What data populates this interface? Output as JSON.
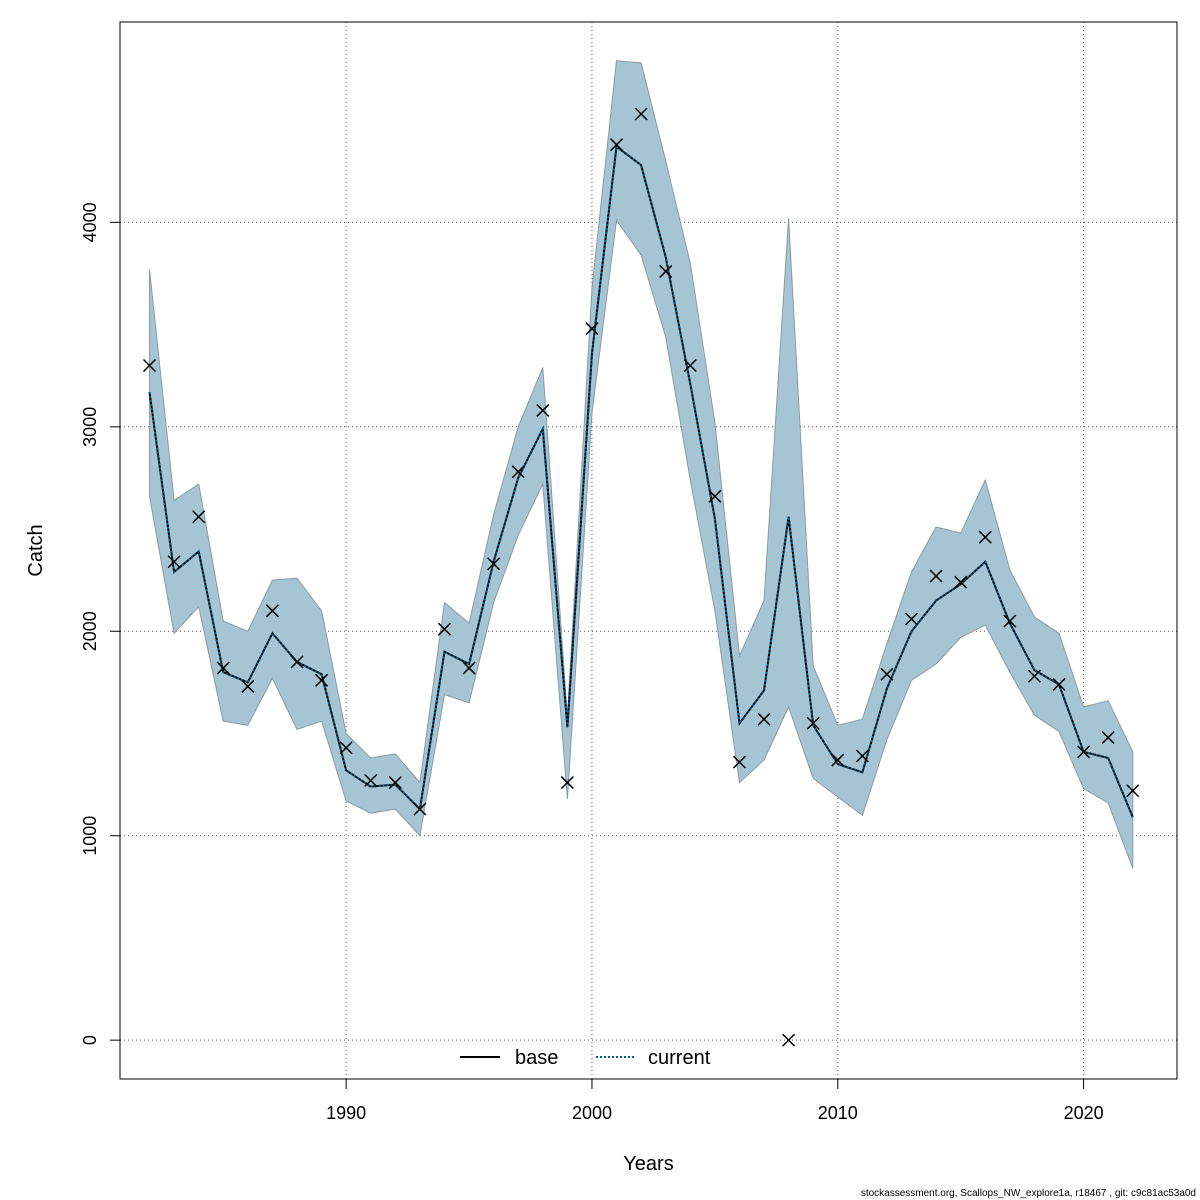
{
  "chart_data": {
    "type": "line",
    "title": "",
    "xlabel": "Years",
    "ylabel": "Catch",
    "xlim": [
      1980.8,
      2023.8
    ],
    "ylim": [
      -190,
      4980
    ],
    "x_ticks": [
      1990,
      2000,
      2010,
      2020
    ],
    "y_ticks": [
      0,
      1000,
      2000,
      3000,
      4000
    ],
    "grid": true,
    "legend_position": "bottom-center",
    "band_color": "#a5c5d5",
    "band_edge_color": "#8a9aa6",
    "x": [
      1982,
      1983,
      1984,
      1985,
      1986,
      1987,
      1988,
      1989,
      1990,
      1991,
      1992,
      1993,
      1994,
      1995,
      1996,
      1997,
      1998,
      1999,
      2000,
      2001,
      2002,
      2003,
      2004,
      2005,
      2006,
      2007,
      2008,
      2009,
      2010,
      2011,
      2012,
      2013,
      2014,
      2015,
      2016,
      2017,
      2018,
      2019,
      2020,
      2021,
      2022
    ],
    "band_upper": [
      3770,
      2640,
      2720,
      2050,
      2000,
      2250,
      2260,
      2100,
      1500,
      1380,
      1400,
      1260,
      2140,
      2040,
      2570,
      3000,
      3290,
      1580,
      3680,
      4790,
      4780,
      4300,
      3800,
      3020,
      1880,
      2150,
      4020,
      1830,
      1540,
      1570,
      1940,
      2290,
      2510,
      2480,
      2740,
      2300,
      2070,
      1990,
      1630,
      1660,
      1410
    ],
    "band_lower": [
      2660,
      1990,
      2120,
      1560,
      1540,
      1770,
      1520,
      1560,
      1170,
      1110,
      1130,
      1000,
      1690,
      1650,
      2140,
      2470,
      2720,
      1180,
      3070,
      4010,
      3840,
      3440,
      2740,
      2100,
      1260,
      1370,
      1630,
      1280,
      1190,
      1100,
      1470,
      1760,
      1840,
      1970,
      2030,
      1800,
      1590,
      1510,
      1230,
      1160,
      840
    ],
    "series": [
      {
        "name": "base",
        "color": "#000000",
        "style": "solid",
        "values": [
          3170,
          2290,
          2390,
          1800,
          1750,
          1990,
          1850,
          1790,
          1320,
          1240,
          1250,
          1130,
          1900,
          1840,
          2340,
          2750,
          2990,
          1530,
          3360,
          4370,
          4280,
          3830,
          3210,
          2550,
          1550,
          1710,
          2560,
          1540,
          1350,
          1310,
          1720,
          2000,
          2150,
          2230,
          2340,
          2040,
          1810,
          1740,
          1410,
          1380,
          1090
        ]
      },
      {
        "name": "current",
        "color": "#0e5c86",
        "style": "dotted",
        "values": [
          3170,
          2290,
          2390,
          1800,
          1750,
          1990,
          1850,
          1790,
          1320,
          1240,
          1250,
          1130,
          1900,
          1840,
          2340,
          2750,
          2990,
          1530,
          3360,
          4370,
          4280,
          3830,
          3210,
          2550,
          1550,
          1710,
          2560,
          1540,
          1350,
          1310,
          1720,
          2000,
          2150,
          2230,
          2340,
          2040,
          1810,
          1740,
          1410,
          1380,
          1090
        ]
      }
    ],
    "observations": [
      3300,
      2340,
      2560,
      1820,
      1730,
      2100,
      1850,
      1760,
      1430,
      1270,
      1260,
      1130,
      2010,
      1820,
      2330,
      2780,
      3080,
      1260,
      3480,
      4380,
      4530,
      3760,
      3300,
      2660,
      1360,
      1570,
      0,
      1550,
      1370,
      1390,
      1790,
      2060,
      2270,
      2240,
      2460,
      2050,
      1780,
      1740,
      1410,
      1480,
      1220
    ],
    "footer": "stockassessment.org, Scallops_NW_explore1a, r18467 , git: c9c81ac53a0d"
  }
}
